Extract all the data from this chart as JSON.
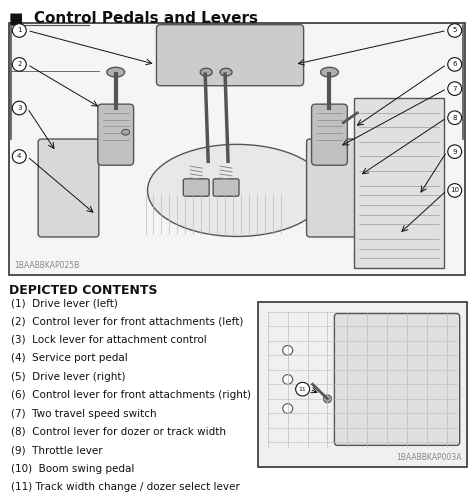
{
  "title": "Control Pedals and Levers",
  "title_marker": "■",
  "main_image_label": "1BAABBKAP025B",
  "secondary_image_label": "1BAABBKAP003A",
  "depicted_contents_title": "DEPICTED CONTENTS",
  "items": [
    "(1)  Drive lever (left)",
    "(2)  Control lever for front attachments (left)",
    "(3)  Lock lever for attachment control",
    "(4)  Service port pedal",
    "(5)  Drive lever (right)",
    "(6)  Control lever for front attachments (right)",
    "(7)  Two travel speed switch",
    "(8)  Control lever for dozer or track width",
    "(9)  Throttle lever",
    "(10)  Boom swing pedal",
    "(11) Track width change / dozer select lever"
  ],
  "bg_color": "#ffffff",
  "border_color": "#333333",
  "text_color": "#111111",
  "light_gray": "#bbbbbb",
  "mid_gray": "#888888",
  "dark_gray": "#555555"
}
